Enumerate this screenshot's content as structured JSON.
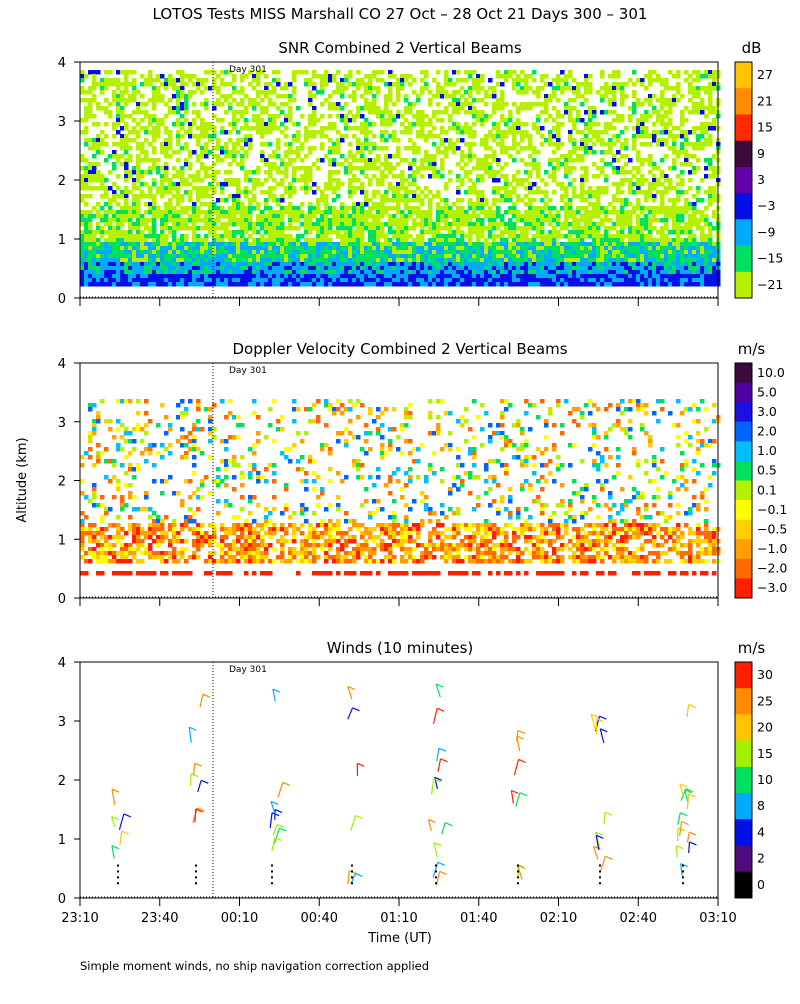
{
  "title": "LOTOS Tests MISS Marshall CO  27 Oct – 28 Oct 21 Days 300 – 301",
  "y_axis_label": "Altitude (km)",
  "x_axis_label": "Time (UT)",
  "footnote": "Simple moment winds, no ship navigation correction applied",
  "day_marker_label": "Day 301",
  "chart_data": [
    {
      "type": "heatmap",
      "title": "SNR Combined 2 Vertical Beams",
      "colorbar_unit": "dB",
      "colorbar_labels": [
        "27",
        "21",
        "15",
        "9",
        "3",
        "−3",
        "−9",
        "−15",
        "−21"
      ],
      "colorbar_colors": [
        "#ffc400",
        "#ff8c00",
        "#ff2a00",
        "#3c0a3c",
        "#6400aa",
        "#0010e6",
        "#00aaff",
        "#00e060",
        "#b4f000"
      ],
      "ylim": [
        0,
        4
      ],
      "y_ticks": [
        0,
        1,
        2,
        3,
        4
      ]
    },
    {
      "type": "heatmap",
      "title": "Doppler Velocity Combined 2 Vertical Beams",
      "colorbar_unit": "m/s",
      "colorbar_labels": [
        "10.0",
        "5.0",
        "3.0",
        "2.0",
        "1.0",
        "0.5",
        "0.1",
        "−0.1",
        "−0.5",
        "−1.0",
        "−2.0",
        "−3.0"
      ],
      "colorbar_colors": [
        "#3c0a3c",
        "#5000a0",
        "#1e10e0",
        "#0064ff",
        "#00bfff",
        "#00e060",
        "#b4f000",
        "#ffff00",
        "#ffd000",
        "#ffa000",
        "#ff6a00",
        "#ff1e00"
      ],
      "ylim": [
        0,
        4
      ],
      "y_ticks": [
        0,
        1,
        2,
        3,
        4
      ]
    },
    {
      "type": "scatter",
      "title": "Winds (10 minutes)",
      "colorbar_unit": "m/s",
      "colorbar_labels": [
        "30",
        "25",
        "20",
        "15",
        "10",
        "8",
        "4",
        "2",
        "0"
      ],
      "colorbar_colors": [
        "#ff1e00",
        "#ff8c00",
        "#ffc400",
        "#a0f000",
        "#00e060",
        "#00aaff",
        "#0010e6",
        "#500a80",
        "#000000"
      ],
      "ylim": [
        0,
        4
      ],
      "y_ticks": [
        0,
        1,
        2,
        3,
        4
      ],
      "x_ticks": [
        "23:10",
        "23:40",
        "00:10",
        "00:40",
        "01:10",
        "01:40",
        "02:10",
        "02:40",
        "03:10"
      ]
    }
  ]
}
